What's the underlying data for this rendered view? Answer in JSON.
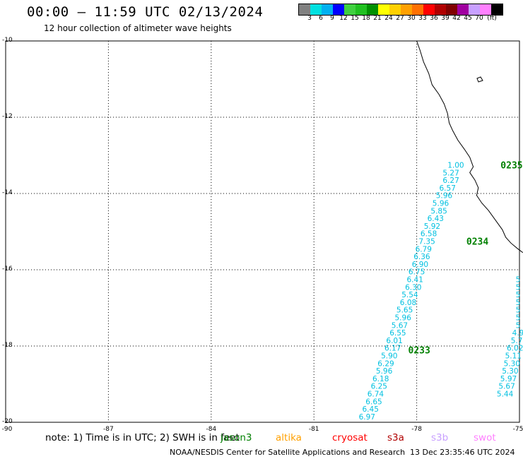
{
  "header": {
    "title": "00:00 – 11:59 UTC 02/13/2024",
    "subtitle": "12 hour collection of altimeter wave heights"
  },
  "colorbar": {
    "unit": "(ft)",
    "labels": [
      "3",
      "6",
      "9",
      "12",
      "15",
      "18",
      "21",
      "24",
      "27",
      "30",
      "33",
      "36",
      "39",
      "42",
      "45",
      "70"
    ],
    "colors": [
      "#808080",
      "#00e0e0",
      "#00b0f0",
      "#0000ff",
      "#40d040",
      "#20c020",
      "#009000",
      "#ffff00",
      "#ffd000",
      "#ffa000",
      "#ff7000",
      "#ff0000",
      "#b00000",
      "#800000",
      "#a000a0",
      "#c8a0ff",
      "#ff80ff",
      "#000000"
    ]
  },
  "map": {
    "lon_labels": [
      "-90",
      "-87",
      "-84",
      "-81",
      "-78",
      "-75"
    ],
    "lat_labels": [
      "-10",
      "-12",
      "-14",
      "-16",
      "-18",
      "-20"
    ],
    "lon_values": [
      -90,
      -87,
      -84,
      -81,
      -78,
      -75
    ],
    "lat_values": [
      -10,
      -12,
      -14,
      -16,
      -18,
      -20
    ],
    "lon_range": [
      -90,
      -75
    ],
    "lat_range": [
      -20,
      -10
    ],
    "coast_color": "#000000",
    "track_color": "#00c0e0",
    "pass_color": "#008000"
  },
  "tracks": [
    {
      "color": "#00c0e0",
      "points": [
        {
          "lon": -76.86,
          "lat": -13.25,
          "value": "1.00"
        },
        {
          "lon": -77.0,
          "lat": -13.45,
          "value": "5.27"
        },
        {
          "lon": -77.0,
          "lat": -13.65,
          "value": "6.27"
        },
        {
          "lon": -77.1,
          "lat": -13.85,
          "value": "6.57"
        },
        {
          "lon": -77.2,
          "lat": -14.05,
          "value": "5.96"
        },
        {
          "lon": -77.3,
          "lat": -14.25,
          "value": "5.96"
        },
        {
          "lon": -77.35,
          "lat": -14.45,
          "value": "5.85"
        },
        {
          "lon": -77.45,
          "lat": -14.65,
          "value": "6.43"
        },
        {
          "lon": -77.55,
          "lat": -14.85,
          "value": "5.92"
        },
        {
          "lon": -77.65,
          "lat": -15.05,
          "value": "6.58"
        },
        {
          "lon": -77.7,
          "lat": -15.25,
          "value": "7.35"
        },
        {
          "lon": -77.8,
          "lat": -15.45,
          "value": "6.79"
        },
        {
          "lon": -77.85,
          "lat": -15.65,
          "value": "6.36"
        },
        {
          "lon": -77.9,
          "lat": -15.85,
          "value": "6.90"
        },
        {
          "lon": -78.0,
          "lat": -16.05,
          "value": "6.75"
        },
        {
          "lon": -78.05,
          "lat": -16.25,
          "value": "6.41"
        },
        {
          "lon": -78.1,
          "lat": -16.45,
          "value": "6.30"
        },
        {
          "lon": -78.2,
          "lat": -16.65,
          "value": "5.54"
        },
        {
          "lon": -78.25,
          "lat": -16.85,
          "value": "6.08"
        },
        {
          "lon": -78.35,
          "lat": -17.05,
          "value": "5.65"
        },
        {
          "lon": -78.4,
          "lat": -17.25,
          "value": "5.96"
        },
        {
          "lon": -78.5,
          "lat": -17.45,
          "value": "5.67"
        },
        {
          "lon": -78.55,
          "lat": -17.65,
          "value": "6.55"
        },
        {
          "lon": -78.65,
          "lat": -17.85,
          "value": "6.01"
        },
        {
          "lon": -78.7,
          "lat": -18.05,
          "value": "6.17"
        },
        {
          "lon": -78.8,
          "lat": -18.25,
          "value": "5.90"
        },
        {
          "lon": -78.9,
          "lat": -18.45,
          "value": "6.29"
        },
        {
          "lon": -78.95,
          "lat": -18.65,
          "value": "5.96"
        },
        {
          "lon": -79.05,
          "lat": -18.85,
          "value": "6.18"
        },
        {
          "lon": -79.1,
          "lat": -19.05,
          "value": "6.25"
        },
        {
          "lon": -79.2,
          "lat": -19.25,
          "value": "6.74"
        },
        {
          "lon": -79.25,
          "lat": -19.45,
          "value": "6.65"
        },
        {
          "lon": -79.35,
          "lat": -19.65,
          "value": "6.45"
        },
        {
          "lon": -79.45,
          "lat": -19.85,
          "value": "6.97"
        }
      ]
    },
    {
      "color": "#00c0e0",
      "points": [
        {
          "lon": -74.98,
          "lat": -16.25,
          "value": "5"
        },
        {
          "lon": -74.98,
          "lat": -16.45,
          "value": "5"
        },
        {
          "lon": -74.98,
          "lat": -16.65,
          "value": "5"
        },
        {
          "lon": -74.98,
          "lat": -16.85,
          "value": "5"
        },
        {
          "lon": -74.98,
          "lat": -17.05,
          "value": "5"
        },
        {
          "lon": -74.98,
          "lat": -17.25,
          "value": "5"
        },
        {
          "lon": -74.98,
          "lat": -17.45,
          "value": "5"
        },
        {
          "lon": -75.03,
          "lat": -17.65,
          "value": "4.9"
        },
        {
          "lon": -75.08,
          "lat": -17.85,
          "value": "5.7"
        },
        {
          "lon": -75.13,
          "lat": -18.05,
          "value": "6.02"
        },
        {
          "lon": -75.18,
          "lat": -18.25,
          "value": "5.11"
        },
        {
          "lon": -75.22,
          "lat": -18.45,
          "value": "5.30"
        },
        {
          "lon": -75.27,
          "lat": -18.65,
          "value": "5.30"
        },
        {
          "lon": -75.32,
          "lat": -18.85,
          "value": "5.97"
        },
        {
          "lon": -75.37,
          "lat": -19.05,
          "value": "5.67"
        },
        {
          "lon": -75.42,
          "lat": -19.25,
          "value": "5.44"
        }
      ]
    }
  ],
  "pass_labels": [
    {
      "text": "0235",
      "lon": -75.55,
      "lat": -13.25
    },
    {
      "text": "0234",
      "lon": -76.55,
      "lat": -15.25
    },
    {
      "text": "0233",
      "lon": -78.25,
      "lat": -18.1
    }
  ],
  "coastline": [
    [
      -78.0,
      -10.0
    ],
    [
      -77.9,
      -10.25
    ],
    [
      -77.8,
      -10.55
    ],
    [
      -77.65,
      -10.85
    ],
    [
      -77.55,
      -11.15
    ],
    [
      -77.35,
      -11.4
    ],
    [
      -77.2,
      -11.65
    ],
    [
      -77.1,
      -11.9
    ],
    [
      -77.05,
      -12.15
    ],
    [
      -76.95,
      -12.35
    ],
    [
      -76.8,
      -12.6
    ],
    [
      -76.6,
      -12.85
    ],
    [
      -76.45,
      -13.05
    ],
    [
      -76.35,
      -13.3
    ],
    [
      -76.45,
      -13.45
    ],
    [
      -76.3,
      -13.65
    ],
    [
      -76.2,
      -13.85
    ],
    [
      -76.25,
      -14.05
    ],
    [
      -76.1,
      -14.25
    ],
    [
      -75.9,
      -14.45
    ],
    [
      -75.7,
      -14.7
    ],
    [
      -75.5,
      -14.95
    ],
    [
      -75.4,
      -15.15
    ],
    [
      -75.25,
      -15.3
    ],
    [
      -75.05,
      -15.45
    ],
    [
      -74.9,
      -15.55
    ]
  ],
  "legend": {
    "note": "note:  1) Time is in UTC; 2) SWH is in feet",
    "satellites": [
      {
        "name": "jason3",
        "color": "#008000"
      },
      {
        "name": "altika",
        "color": "#ffa000"
      },
      {
        "name": "cryosat",
        "color": "#ff0000"
      },
      {
        "name": "s3a",
        "color": "#b00000"
      },
      {
        "name": "s3b",
        "color": "#c8a0ff"
      },
      {
        "name": "swot",
        "color": "#ff80ff"
      }
    ]
  },
  "footer": {
    "credit": "NOAA/NESDIS Center for Satellite Applications and Research",
    "timestamp": "13 Dec 23:35:46 UTC 2024"
  }
}
